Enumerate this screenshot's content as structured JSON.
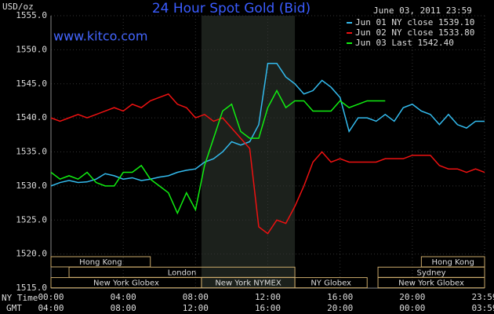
{
  "chart_data": {
    "type": "line",
    "title": "24 Hour Spot Gold (Bid)",
    "subtitle": "June 03, 2011 23:59",
    "watermark": "www.kitco.com",
    "y_label": "USD/oz",
    "x_label": "NY Time",
    "x2_label": "GMT",
    "x": [
      0,
      0.5,
      1,
      1.5,
      2,
      2.5,
      3,
      3.5,
      4,
      4.5,
      5,
      5.5,
      6,
      6.5,
      7,
      7.5,
      8,
      8.5,
      9,
      9.5,
      10,
      10.5,
      11,
      11.5,
      12,
      12.5,
      13,
      13.5,
      14,
      14.5,
      15,
      15.5,
      16,
      16.5,
      17,
      17.5,
      18,
      18.5,
      19,
      19.5,
      20,
      20.5,
      21,
      21.5,
      22,
      22.5,
      23,
      23.5,
      24
    ],
    "xlim": [
      0,
      24
    ],
    "xticks": [
      {
        "value": 0,
        "label": "00:00"
      },
      {
        "value": 4,
        "label": "04:00"
      },
      {
        "value": 8,
        "label": "08:00"
      },
      {
        "value": 12,
        "label": "12:00"
      },
      {
        "value": 16,
        "label": "16:00"
      },
      {
        "value": 20,
        "label": "20:00"
      },
      {
        "value": 24,
        "label": "23:59"
      }
    ],
    "x2tick_labels": [
      "04:00",
      "08:00",
      "12:00",
      "16:00",
      "20:00",
      "00:00",
      "03:59"
    ],
    "ylim": [
      1515,
      1555
    ],
    "yticks": [
      {
        "value": 1515,
        "label": "1515.0"
      },
      {
        "value": 1520,
        "label": "1520.0"
      },
      {
        "value": 1525,
        "label": "1525.0"
      },
      {
        "value": 1530,
        "label": "1530.0"
      },
      {
        "value": 1535,
        "label": "1535.0"
      },
      {
        "value": 1540,
        "label": "1540.0"
      },
      {
        "value": 1545,
        "label": "1545.0"
      },
      {
        "value": 1550,
        "label": "1550.0"
      },
      {
        "value": 1555,
        "label": "1555.0"
      }
    ],
    "grid": true,
    "highlight": [
      8.33,
      13.5
    ],
    "series": [
      {
        "name": "Jun 01 NY close 1539.10",
        "color": "#33bbee",
        "values": [
          1530,
          1530.5,
          1530.8,
          1530.5,
          1530.6,
          1531,
          1531.8,
          1531.5,
          1531,
          1531.2,
          1530.8,
          1531,
          1531.3,
          1531.5,
          1532,
          1532.3,
          1532.5,
          1533.5,
          1534,
          1535,
          1536.5,
          1536,
          1536.5,
          1539,
          1548,
          1548,
          1546,
          1545,
          1543.5,
          1544,
          1545.5,
          1544.5,
          1543,
          1538,
          1540,
          1540,
          1539.5,
          1540.5,
          1539.5,
          1541.5,
          1542,
          1541,
          1540.5,
          1539,
          1540.5,
          1539,
          1538.5,
          1539.5,
          1539.5
        ]
      },
      {
        "name": "Jun 02 NY close 1533.80",
        "color": "#ee1111",
        "values": [
          1540,
          1539.5,
          1540,
          1540.5,
          1540,
          1540.5,
          1541,
          1541.5,
          1541,
          1542,
          1541.5,
          1542.5,
          1543,
          1543.5,
          1542,
          1541.5,
          1540,
          1540.5,
          1539.5,
          1540,
          1538.5,
          1537,
          1535.5,
          1524,
          1523,
          1525,
          1524.5,
          1527,
          1530,
          1533.5,
          1535,
          1533.5,
          1534,
          1533.5,
          1533.5,
          1533.5,
          1533.5,
          1534,
          1534,
          1534,
          1534.5,
          1534.5,
          1534.5,
          1533,
          1532.5,
          1532.5,
          1532,
          1532.5,
          1532
        ]
      },
      {
        "name": "Jun 03 Last 1542.40",
        "color": "#11ee11",
        "values": [
          1532,
          1531,
          1531.5,
          1531,
          1532,
          1530.5,
          1530,
          1530,
          1532,
          1532,
          1533,
          1531,
          1530,
          1529,
          1526,
          1529,
          1526.5,
          1533,
          1537,
          1541,
          1542,
          1538,
          1537,
          1537,
          1541.5,
          1544,
          1541.5,
          1542.5,
          1542.5,
          1541,
          1541,
          1541,
          1542.5,
          1541.5,
          1542,
          1542.5,
          1542.5,
          1542.5,
          null,
          null,
          null,
          null,
          null,
          null,
          null,
          null,
          null,
          null,
          null
        ]
      }
    ],
    "sessions": [
      {
        "label": "Hong Kong",
        "start": 0,
        "end": 5.5,
        "row": 0
      },
      {
        "label": "Hong Kong",
        "start": 20.5,
        "end": 24,
        "row": 0
      },
      {
        "label": "London",
        "start": 1,
        "end": 13.5,
        "row": 1
      },
      {
        "label": "Sydney",
        "start": 18.1,
        "end": 24,
        "row": 1
      },
      {
        "label": "New York Globex",
        "start": 0,
        "end": 8.33,
        "row": 2
      },
      {
        "label": "New York NYMEX",
        "start": 8.33,
        "end": 13.5,
        "row": 2
      },
      {
        "label": "NY Globex",
        "start": 13.5,
        "end": 17.5,
        "row": 2
      },
      {
        "label": "New York Globex",
        "start": 18.1,
        "end": 24,
        "row": 2
      }
    ]
  }
}
